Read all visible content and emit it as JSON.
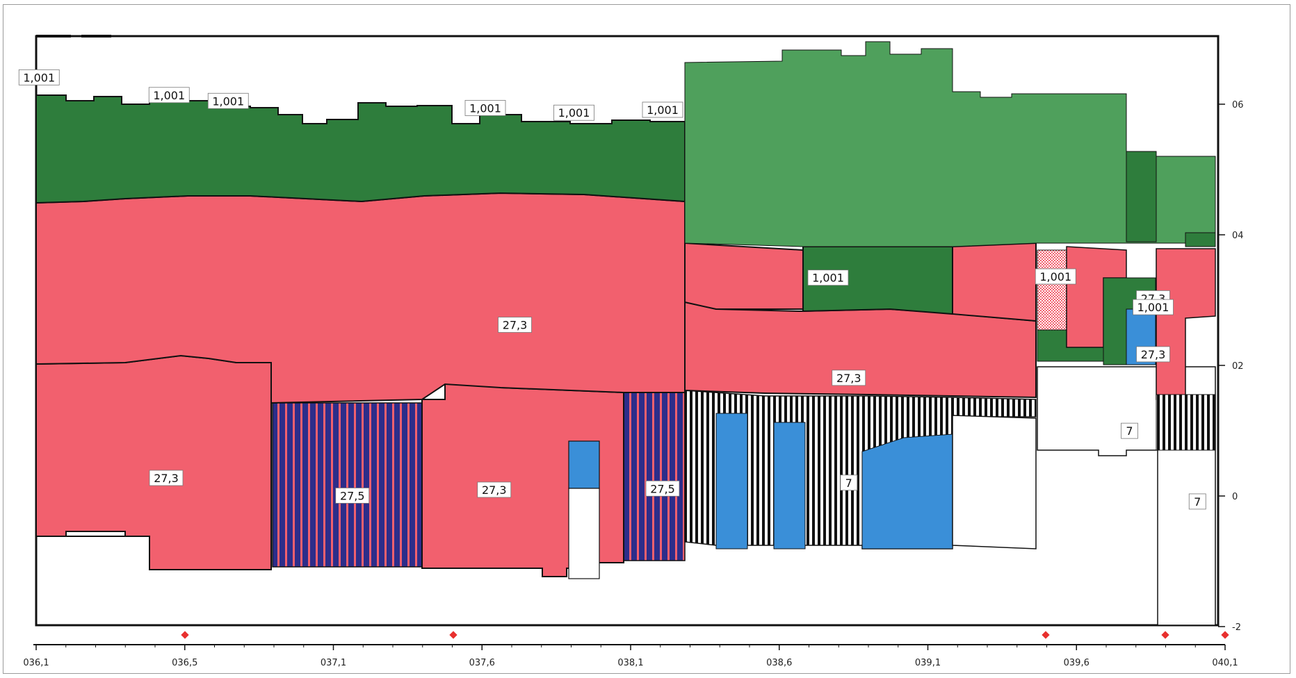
{
  "chart_data": {
    "type": "area",
    "title": "",
    "xlabel": "",
    "ylabel": "",
    "grid": false,
    "x_ticks": [
      "036,1",
      "036,5",
      "037,1",
      "037,6",
      "038,1",
      "038,6",
      "039,1",
      "039,6",
      "040,1"
    ],
    "x_range": [
      36.1,
      40.1
    ],
    "y_ticks": [
      "06",
      "04",
      "02",
      "0",
      "-2"
    ],
    "y_range": [
      -2,
      8
    ],
    "series_colors": {
      "green": "#2e7d3c",
      "light_green": "#4fa05c",
      "red": "#f2606e",
      "blue": "#3a8fd8",
      "navy": "#2d2d8a",
      "white": "#ffffff",
      "outline": "#111111"
    },
    "labels": [
      {
        "text": "1,001",
        "x": 36.11,
        "y": 7.3
      },
      {
        "text": "1,001",
        "x": 36.55,
        "y": 7.0
      },
      {
        "text": "1,001",
        "x": 36.75,
        "y": 6.9
      },
      {
        "text": "1,001",
        "x": 37.62,
        "y": 6.78
      },
      {
        "text": "1,001",
        "x": 37.92,
        "y": 6.7
      },
      {
        "text": "1,001",
        "x": 38.22,
        "y": 6.75
      },
      {
        "text": "27,3",
        "x": 37.72,
        "y": 3.1
      },
      {
        "text": "27,3",
        "x": 36.54,
        "y": 0.5
      },
      {
        "text": "27,5",
        "x": 37.17,
        "y": 0.2
      },
      {
        "text": "27,3",
        "x": 37.65,
        "y": 0.3
      },
      {
        "text": "27,5",
        "x": 38.22,
        "y": 0.32
      },
      {
        "text": "1,001",
        "x": 38.78,
        "y": 3.9
      },
      {
        "text": "27,3",
        "x": 38.85,
        "y": 2.2
      },
      {
        "text": "7",
        "x": 38.85,
        "y": 0.42
      },
      {
        "text": "1,001",
        "x": 39.55,
        "y": 3.92
      },
      {
        "text": "27,3",
        "x": 39.88,
        "y": 3.55
      },
      {
        "text": "1,001",
        "x": 39.88,
        "y": 3.4
      },
      {
        "text": "27,3",
        "x": 39.88,
        "y": 2.6
      },
      {
        "text": "7",
        "x": 39.8,
        "y": 1.3
      },
      {
        "text": "7",
        "x": 40.03,
        "y": 0.1
      }
    ]
  }
}
